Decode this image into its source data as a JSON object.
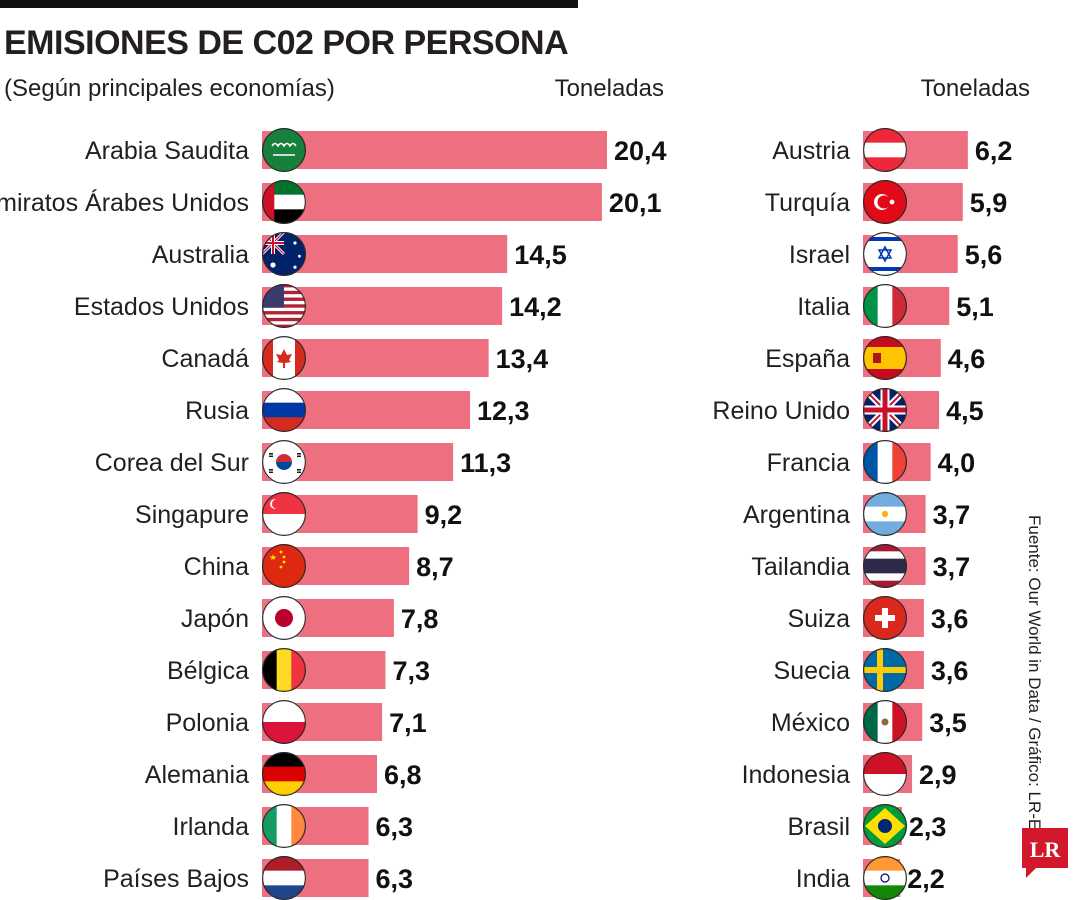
{
  "header": {
    "title": "EMISIONES DE C02 POR PERSONA",
    "subtitle": "(Según principales economías)",
    "unit_left": "Toneladas",
    "unit_right": "Toneladas"
  },
  "footer": {
    "source": "Fuente: Our World in Data / Gráfico: LR-ER",
    "logo_text": "LR"
  },
  "colors": {
    "bar": "#ee6f7f",
    "text": "#231f20",
    "logo": "#d4182c"
  },
  "chart_data": [
    {
      "type": "bar",
      "orientation": "horizontal",
      "categories": [
        "Arabia Saudita",
        "Emiratos Árabes Unidos",
        "Australia",
        "Estados Unidos",
        "Canadá",
        "Rusia",
        "Corea del Sur",
        "Singapure",
        "China",
        "Japón",
        "Bélgica",
        "Polonia",
        "Alemania",
        "Irlanda",
        "Países Bajos"
      ],
      "values": [
        20.4,
        20.1,
        14.5,
        14.2,
        13.4,
        12.3,
        11.3,
        9.2,
        8.7,
        7.8,
        7.3,
        7.1,
        6.8,
        6.3,
        6.3
      ],
      "value_labels": [
        "20,4",
        "20,1",
        "14,5",
        "14,2",
        "13,4",
        "12,3",
        "11,3",
        "9,2",
        "8,7",
        "7,8",
        "7,3",
        "7,1",
        "6,8",
        "6,3",
        "6,3"
      ],
      "flags": [
        "saudi-arabia-flag-icon",
        "uae-flag-icon",
        "australia-flag-icon",
        "usa-flag-icon",
        "canada-flag-icon",
        "russia-flag-icon",
        "south-korea-flag-icon",
        "singapore-flag-icon",
        "china-flag-icon",
        "japan-flag-icon",
        "belgium-flag-icon",
        "poland-flag-icon",
        "germany-flag-icon",
        "ireland-flag-icon",
        "netherlands-flag-icon"
      ],
      "xlabel": "Toneladas",
      "ylabel": "",
      "xlim": [
        0,
        20.4
      ]
    },
    {
      "type": "bar",
      "orientation": "horizontal",
      "categories": [
        "Austria",
        "Turquía",
        "Israel",
        "Italia",
        "España",
        "Reino Unido",
        "Francia",
        "Argentina",
        "Tailandia",
        "Suiza",
        "Suecia",
        "México",
        "Indonesia",
        "Brasil",
        "India"
      ],
      "values": [
        6.2,
        5.9,
        5.6,
        5.1,
        4.6,
        4.5,
        4.0,
        3.7,
        3.7,
        3.6,
        3.6,
        3.5,
        2.9,
        2.3,
        2.2
      ],
      "value_labels": [
        "6,2",
        "5,9",
        "5,6",
        "5,1",
        "4,6",
        "4,5",
        "4,0",
        "3,7",
        "3,7",
        "3,6",
        "3,6",
        "3,5",
        "2,9",
        "2,3",
        "2,2"
      ],
      "flags": [
        "austria-flag-icon",
        "turkey-flag-icon",
        "israel-flag-icon",
        "italy-flag-icon",
        "spain-flag-icon",
        "uk-flag-icon",
        "france-flag-icon",
        "argentina-flag-icon",
        "thailand-flag-icon",
        "switzerland-flag-icon",
        "sweden-flag-icon",
        "mexico-flag-icon",
        "indonesia-flag-icon",
        "brazil-flag-icon",
        "india-flag-icon"
      ],
      "xlabel": "Toneladas",
      "ylabel": "",
      "xlim": [
        0,
        20.4
      ]
    }
  ]
}
